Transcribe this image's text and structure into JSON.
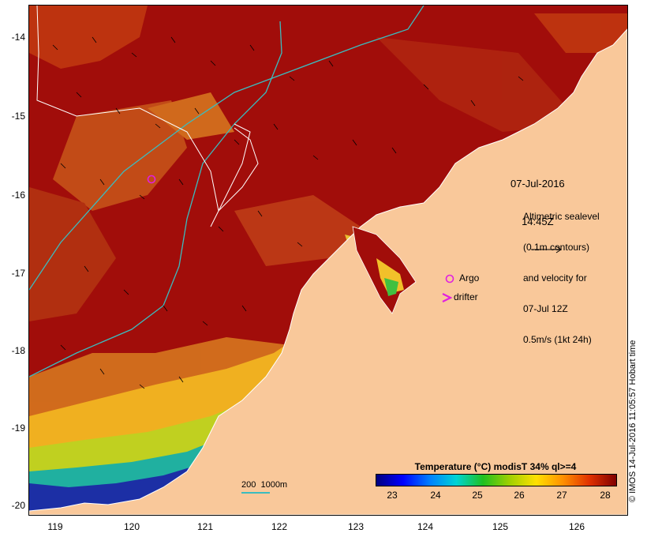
{
  "map": {
    "y_axis_ticks": [
      "-14",
      "-15",
      "-16",
      "-17",
      "-18",
      "-19",
      "-20"
    ],
    "x_axis_ticks": [
      "119",
      "120",
      "121",
      "122",
      "123",
      "124",
      "125",
      "126"
    ],
    "date_line1": "07-Jul-2016",
    "date_line2": "14:45Z",
    "altimetry_lines": [
      "Altimetric sealevel",
      "(0.1m contours)",
      "and velocity for",
      "07-Jul 12Z",
      "0.5m/s (1kt 24h)"
    ],
    "argo_label": "Argo",
    "drifter_label": "drifter",
    "scale_label": "200  1000m",
    "credit": "© IMOS 14-Jul-2016 11:05:57 Hobart time",
    "colorbar_title": "Temperature (°C) modisT 34% ql>=4",
    "colorbar_ticks": [
      "23",
      "24",
      "25",
      "26",
      "27",
      "28"
    ],
    "colors": {
      "land": "#f9c89a",
      "sst_warm": "#a10d0a",
      "sst_mid": "#e9a31c",
      "sst_cool": "#1c2fa5",
      "contour": "#ffffff",
      "isobath": "#3bbcbf",
      "marker": "#e020e0"
    },
    "colorbar_colors": [
      "#00007f",
      "#0000ff",
      "#007fff",
      "#00d4d4",
      "#20c020",
      "#a0d000",
      "#ffe000",
      "#ff9000",
      "#e03000",
      "#800000"
    ]
  }
}
